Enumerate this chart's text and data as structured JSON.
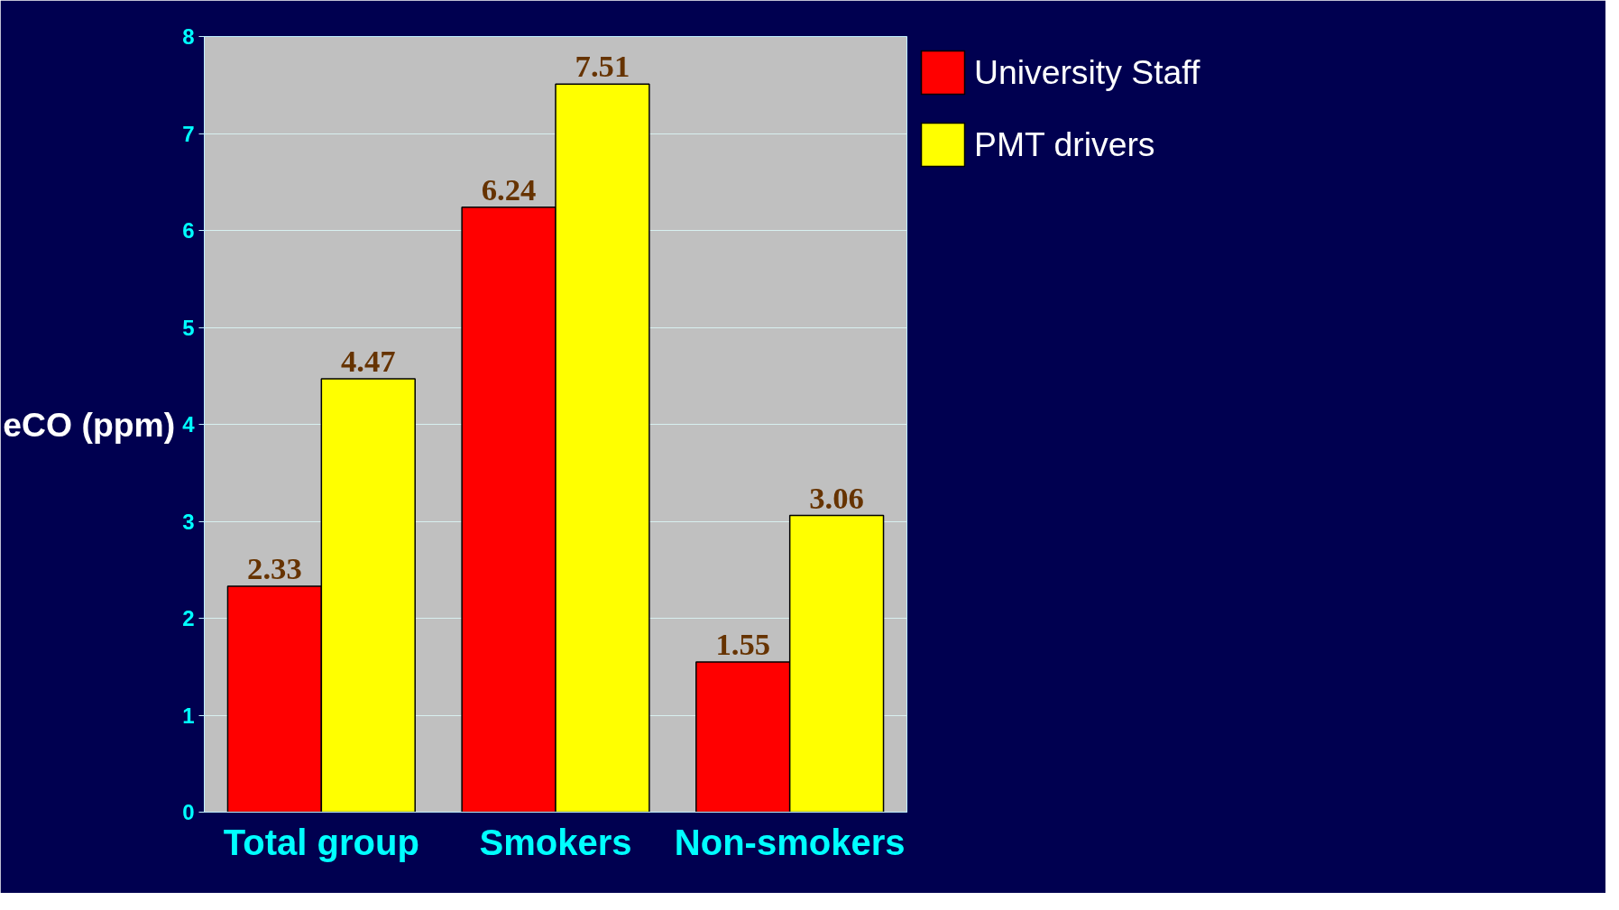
{
  "chart_data": {
    "type": "bar",
    "ylabel": "eCO (ppm)",
    "categories": [
      "Total group",
      "Smokers",
      "Non-smokers"
    ],
    "series": [
      {
        "name": "University Staff",
        "color": "#ff0000",
        "values": [
          2.33,
          6.24,
          1.55
        ]
      },
      {
        "name": "PMT drivers",
        "color": "#ffff00",
        "values": [
          4.47,
          7.51,
          3.06
        ]
      }
    ],
    "ylim": [
      0,
      8
    ],
    "yticks": [
      0,
      1,
      2,
      3,
      4,
      5,
      6,
      7,
      8
    ],
    "grid": "y",
    "legend": "top right",
    "data_labels": true
  }
}
